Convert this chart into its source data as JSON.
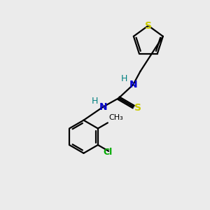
{
  "background_color": "#ebebeb",
  "bond_color": "#000000",
  "N_color": "#0000cc",
  "S_color": "#cccc00",
  "Cl_color": "#00aa00",
  "H_color": "#008080",
  "figsize": [
    3.0,
    3.0
  ],
  "dpi": 100,
  "xlim": [
    0,
    10
  ],
  "ylim": [
    0,
    10
  ],
  "lw": 1.6
}
